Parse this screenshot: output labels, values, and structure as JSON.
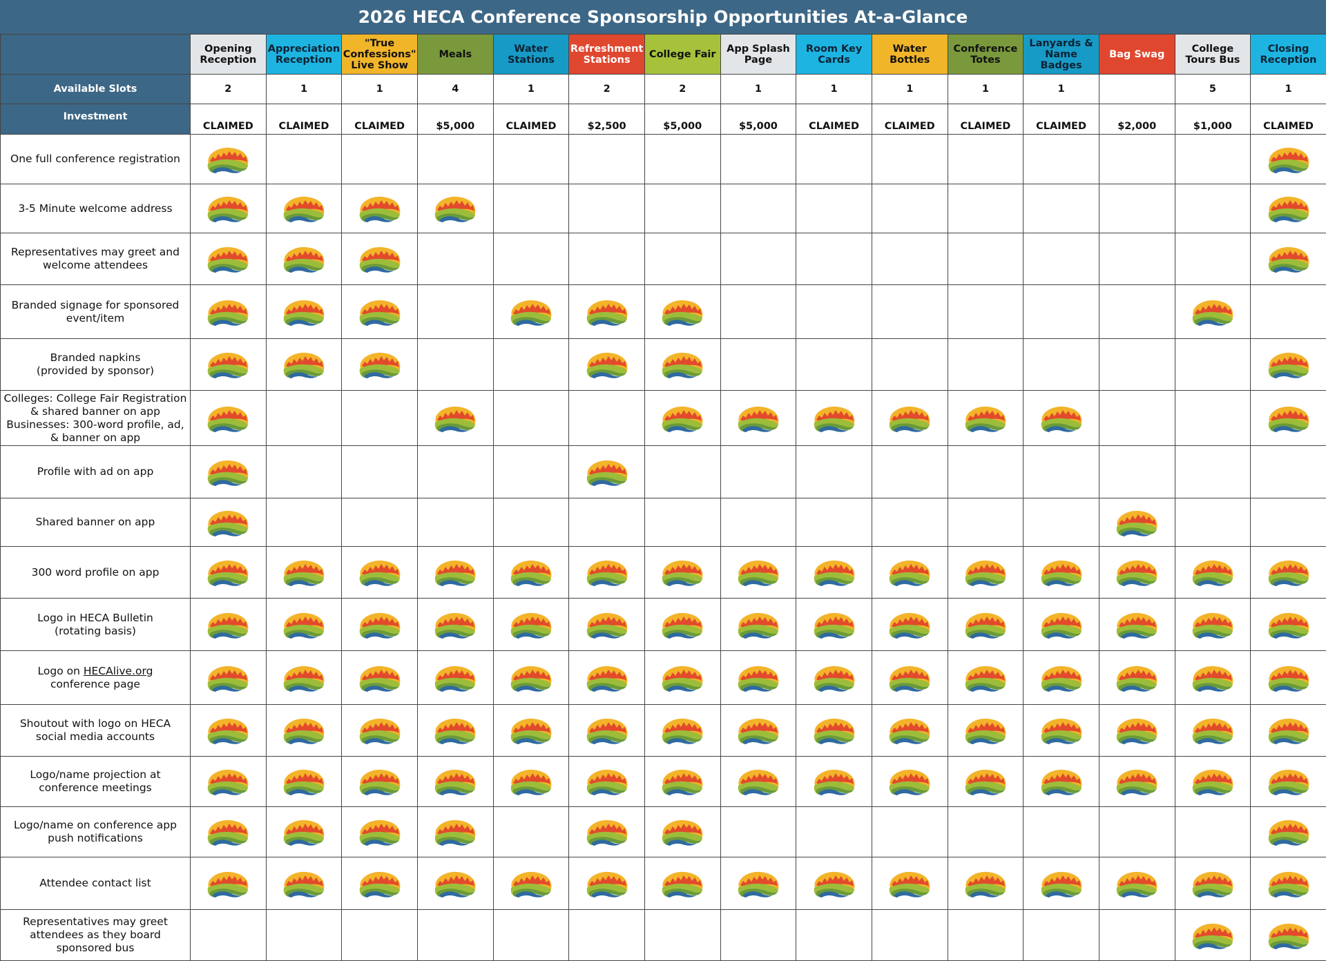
{
  "title": "2026 HECA Conference Sponsorship Opportunities At-a-Glance",
  "header": {
    "slots_label": "Available Slots",
    "investment_label": "Investment",
    "columns": [
      {
        "name": "Opening\nReception",
        "color": "#e3e6e8",
        "text_color": "#111111",
        "slots": "2",
        "investment": "CLAIMED"
      },
      {
        "name": "Appreciation\nReception",
        "color": "#1db4e2",
        "text_color": "#0d2233",
        "slots": "1",
        "investment": "CLAIMED"
      },
      {
        "name": "\"True\nConfessions\"\nLive Show",
        "color": "#f1b52a",
        "text_color": "#111111",
        "slots": "1",
        "investment": "CLAIMED"
      },
      {
        "name": "Meals",
        "color": "#7a993d",
        "text_color": "#111111",
        "slots": "4",
        "investment": "$5,000"
      },
      {
        "name": "Water\nStations",
        "color": "#189ac6",
        "text_color": "#0d2233",
        "slots": "1",
        "investment": "CLAIMED"
      },
      {
        "name": "Refreshment\nStations",
        "color": "#e0472f",
        "text_color": "#ffffff",
        "slots": "2",
        "investment": "$2,500"
      },
      {
        "name": "College Fair",
        "color": "#a6c23b",
        "text_color": "#111111",
        "slots": "2",
        "investment": "$5,000"
      },
      {
        "name": "App Splash\nPage",
        "color": "#e3e6e8",
        "text_color": "#111111",
        "slots": "1",
        "investment": "$5,000"
      },
      {
        "name": "Room Key\nCards",
        "color": "#1db4e2",
        "text_color": "#0d2233",
        "slots": "1",
        "investment": "CLAIMED"
      },
      {
        "name": "Water\nBottles",
        "color": "#f1b52a",
        "text_color": "#111111",
        "slots": "1",
        "investment": "CLAIMED"
      },
      {
        "name": "Conference\nTotes",
        "color": "#7a993d",
        "text_color": "#111111",
        "slots": "1",
        "investment": "CLAIMED"
      },
      {
        "name": "Lanyards &\nName\nBadges",
        "color": "#189ac6",
        "text_color": "#0d2233",
        "slots": "1",
        "investment": "CLAIMED"
      },
      {
        "name": "Bag Swag",
        "color": "#e0472f",
        "text_color": "#ffffff",
        "slots": null,
        "investment": "$2,000"
      },
      {
        "name": "College\nTours Bus",
        "color": "#e3e6e8",
        "text_color": "#111111",
        "slots": "5",
        "investment": "$1,000"
      },
      {
        "name": "Closing\nReception",
        "color": "#1db4e2",
        "text_color": "#0d2233",
        "slots": "1",
        "investment": "CLAIMED"
      }
    ]
  },
  "table": {
    "rows": [
      {
        "label": "One full conference registration",
        "included": [
          true,
          false,
          false,
          false,
          false,
          false,
          false,
          false,
          false,
          false,
          false,
          false,
          false,
          false,
          true
        ]
      },
      {
        "label": "3-5 Minute welcome address",
        "included": [
          true,
          true,
          true,
          true,
          false,
          false,
          false,
          false,
          false,
          false,
          false,
          false,
          false,
          false,
          true
        ]
      },
      {
        "label": "Representatives may greet and\nwelcome attendees",
        "included": [
          true,
          true,
          true,
          false,
          false,
          false,
          false,
          false,
          false,
          false,
          false,
          false,
          false,
          false,
          true
        ]
      },
      {
        "label": "Branded signage for sponsored\nevent/item",
        "included": [
          true,
          true,
          true,
          false,
          true,
          true,
          true,
          false,
          false,
          false,
          false,
          false,
          false,
          true,
          false
        ]
      },
      {
        "label": "Branded napkins\n(provided by sponsor)",
        "included": [
          true,
          true,
          true,
          false,
          false,
          true,
          true,
          false,
          false,
          false,
          false,
          false,
          false,
          false,
          true
        ]
      },
      {
        "label": "Colleges: College Fair Registration\n& shared banner on app\nBusinesses: 300-word profile, ad,\n& banner on app",
        "included": [
          true,
          false,
          false,
          true,
          false,
          false,
          true,
          true,
          true,
          true,
          true,
          true,
          false,
          false,
          true
        ]
      },
      {
        "label": "Profile with ad on app",
        "included": [
          true,
          false,
          false,
          false,
          false,
          true,
          false,
          false,
          false,
          false,
          false,
          false,
          false,
          false,
          false
        ]
      },
      {
        "label": "Shared banner on app",
        "included": [
          true,
          false,
          false,
          false,
          false,
          false,
          false,
          false,
          false,
          false,
          false,
          false,
          true,
          false,
          false
        ]
      },
      {
        "label": "300 word profile on app",
        "included": [
          true,
          true,
          true,
          true,
          true,
          true,
          true,
          true,
          true,
          true,
          true,
          true,
          true,
          true,
          true
        ]
      },
      {
        "label": "Logo in HECA Bulletin\n(rotating basis)",
        "included": [
          true,
          true,
          true,
          true,
          true,
          true,
          true,
          true,
          true,
          true,
          true,
          true,
          true,
          true,
          true
        ]
      },
      {
        "label": "Logo on",
        "link": "HECAlive.org",
        "label_end": "conference page",
        "included": [
          true,
          true,
          true,
          true,
          true,
          true,
          true,
          true,
          true,
          true,
          true,
          true,
          true,
          true,
          true
        ]
      },
      {
        "label": "Shoutout with logo on HECA\nsocial media accounts",
        "included": [
          true,
          true,
          true,
          true,
          true,
          true,
          true,
          true,
          true,
          true,
          true,
          true,
          true,
          true,
          true
        ]
      },
      {
        "label": "Logo/name projection at\nconference meetings",
        "included": [
          true,
          true,
          true,
          true,
          true,
          true,
          true,
          true,
          true,
          true,
          true,
          true,
          true,
          true,
          true
        ]
      },
      {
        "label": "Logo/name on conference app\npush notifications",
        "included": [
          true,
          true,
          true,
          true,
          false,
          true,
          true,
          false,
          false,
          false,
          false,
          false,
          false,
          false,
          true
        ]
      },
      {
        "label": "Attendee contact list",
        "included": [
          true,
          true,
          true,
          true,
          true,
          true,
          true,
          true,
          true,
          true,
          true,
          true,
          true,
          true,
          true
        ]
      },
      {
        "label": "Representatives may greet\nattendees as they board\nsponsored bus",
        "included": [
          false,
          false,
          false,
          false,
          false,
          false,
          false,
          false,
          false,
          false,
          false,
          false,
          false,
          true,
          true
        ]
      }
    ]
  }
}
